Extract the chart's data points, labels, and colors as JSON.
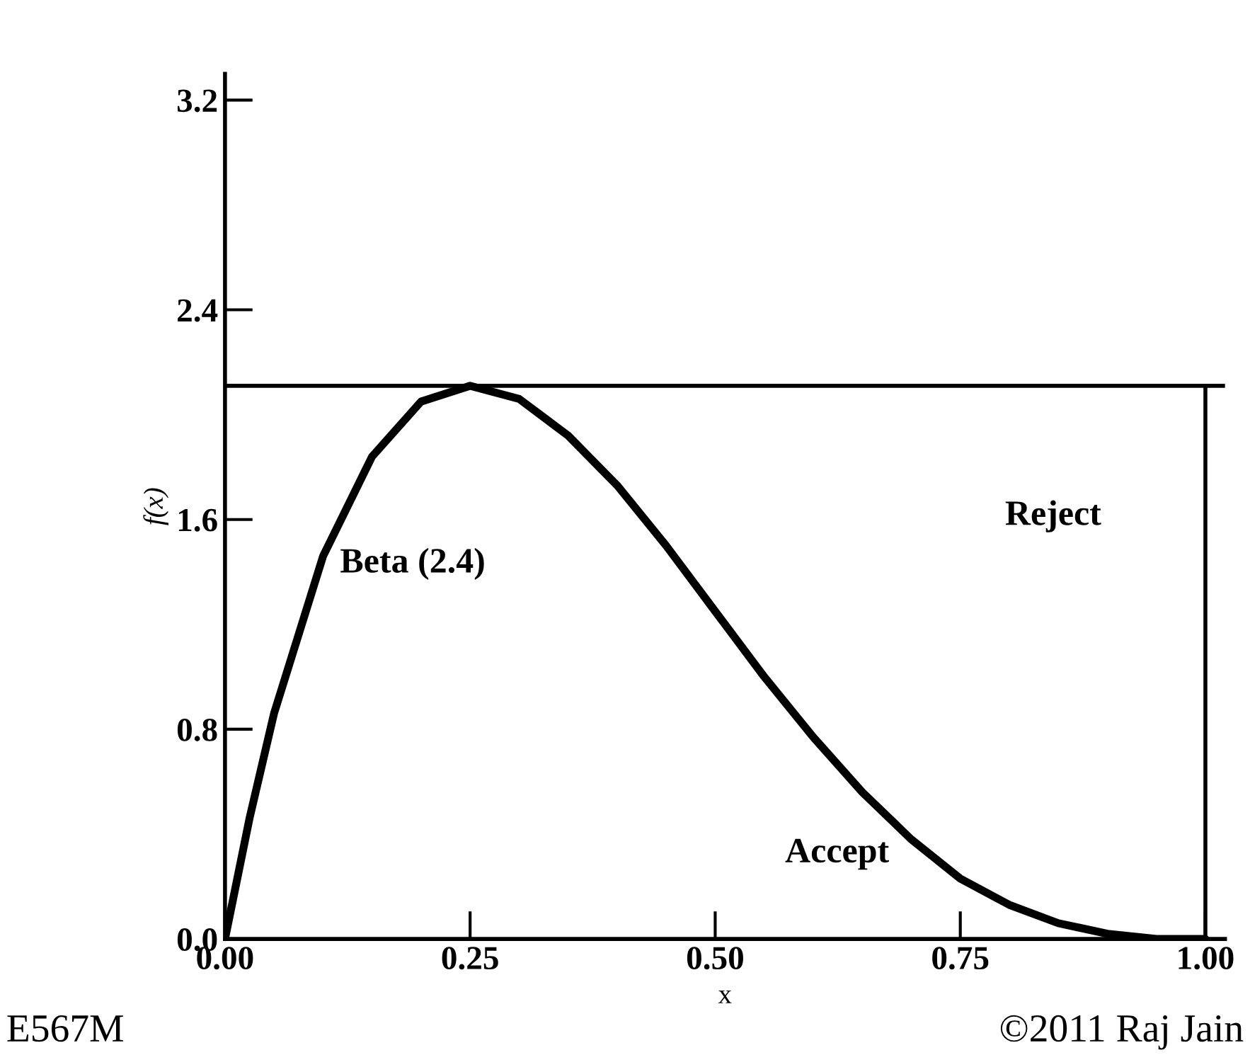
{
  "chart_data": {
    "type": "line",
    "xlabel": "x",
    "ylabel": "f(x)",
    "x": [
      0,
      0.025,
      0.05,
      0.1,
      0.15,
      0.2,
      0.25,
      0.3,
      0.35,
      0.4,
      0.45,
      0.5,
      0.55,
      0.6,
      0.65,
      0.7,
      0.75,
      0.8,
      0.85,
      0.9,
      0.95,
      1.0
    ],
    "series": [
      {
        "color": "#000000",
        "values": [
          0,
          0.46,
          0.86,
          1.46,
          1.84,
          2.05,
          2.11,
          2.06,
          1.92,
          1.73,
          1.5,
          1.25,
          1.0,
          0.77,
          0.56,
          0.38,
          0.23,
          0.13,
          0.06,
          0.02,
          0,
          0
        ]
      }
    ],
    "xlim": [
      0,
      1.02
    ],
    "ylim": [
      0,
      3.3
    ],
    "xticks": [
      {
        "value": 0,
        "label": "0.00"
      },
      {
        "value": 0.25,
        "label": "0.25"
      },
      {
        "value": 0.5,
        "label": "0.50"
      },
      {
        "value": 0.75,
        "label": "0.75"
      },
      {
        "value": 1.0,
        "label": "1.00"
      }
    ],
    "yticks": [
      {
        "value": 0,
        "label": "0.0"
      },
      {
        "value": 0.8,
        "label": "0.8"
      },
      {
        "value": 1.6,
        "label": "1.6"
      },
      {
        "value": 2.4,
        "label": "2.4"
      },
      {
        "value": 3.2,
        "label": "3.2"
      }
    ],
    "ref_lines": [
      {
        "axis": "y",
        "value": 2.11,
        "color": "#000000"
      },
      {
        "axis": "x",
        "value": 1.0,
        "color": "#000000"
      }
    ],
    "annotations": [
      "Beta (2.4)",
      "Reject",
      "Accept",
      "E567M",
      "©2011 Raj Jain"
    ],
    "grid": false,
    "legend": false,
    "marker": "none",
    "line_style": "solid"
  }
}
